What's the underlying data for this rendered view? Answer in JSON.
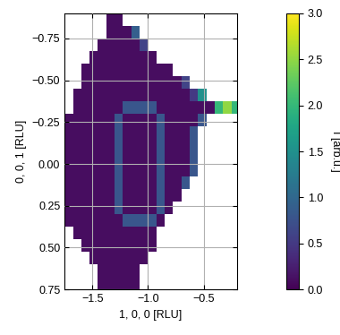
{
  "chart_data": {
    "type": "heatmap",
    "x_label": "1, 0, 0 [RLU]",
    "y_label": "0, 0, 1 [RLU]",
    "xlim": [
      -1.75,
      -0.2
    ],
    "ylim": [
      0.75,
      -0.9
    ],
    "xticks": [
      {
        "value": -1.5,
        "label": "−1.5"
      },
      {
        "value": -1.0,
        "label": "−1.0"
      },
      {
        "value": -0.5,
        "label": "−0.5"
      }
    ],
    "yticks": [
      {
        "value": -0.75,
        "label": "−0.75"
      },
      {
        "value": -0.5,
        "label": "−0.50"
      },
      {
        "value": -0.25,
        "label": "−0.25"
      },
      {
        "value": 0.0,
        "label": "0.00"
      },
      {
        "value": 0.25,
        "label": "0.25"
      },
      {
        "value": 0.5,
        "label": "0.50"
      },
      {
        "value": 0.75,
        "label": "0.75"
      }
    ],
    "grid": true,
    "x_edges": [
      -1.75,
      -1.675,
      -1.6,
      -1.525,
      -1.45,
      -1.375,
      -1.3,
      -1.225,
      -1.15,
      -1.075,
      -1.0,
      -0.925,
      -0.85,
      -0.775,
      -0.7,
      -0.625,
      -0.55,
      -0.475,
      -0.4,
      -0.325,
      -0.25,
      -0.175
    ],
    "y_edges": [
      -0.9,
      -0.825,
      -0.75,
      -0.675,
      -0.6,
      -0.525,
      -0.45,
      -0.375,
      -0.3,
      -0.225,
      -0.15,
      -0.075,
      0,
      0.075,
      0.15,
      0.225,
      0.3,
      0.375,
      0.45,
      0.525,
      0.6,
      0.675,
      0.75
    ],
    "cells": [
      [
        null,
        null,
        null,
        null,
        null,
        0.1,
        0.1,
        null,
        null,
        null,
        null,
        null,
        null,
        null,
        null,
        null,
        null,
        null,
        null,
        null,
        null
      ],
      [
        null,
        null,
        null,
        null,
        null,
        0.1,
        0.1,
        0.1,
        0.9,
        null,
        null,
        null,
        null,
        null,
        null,
        null,
        null,
        null,
        null,
        null,
        null
      ],
      [
        null,
        null,
        null,
        null,
        0.1,
        0.1,
        0.1,
        0.1,
        0.1,
        0.6,
        null,
        null,
        null,
        null,
        null,
        null,
        null,
        null,
        null,
        null,
        null
      ],
      [
        null,
        null,
        null,
        0.1,
        0.1,
        0.1,
        0.1,
        0.1,
        0.1,
        0.1,
        0.1,
        null,
        null,
        null,
        null,
        null,
        null,
        null,
        null,
        null,
        null
      ],
      [
        null,
        null,
        0.1,
        0.1,
        0.1,
        0.1,
        0.1,
        0.1,
        0.1,
        0.1,
        0.1,
        0.1,
        0.1,
        null,
        null,
        null,
        null,
        null,
        null,
        null,
        null
      ],
      [
        null,
        null,
        0.1,
        0.1,
        0.1,
        0.1,
        0.1,
        0.1,
        0.1,
        0.1,
        0.1,
        0.1,
        0.1,
        0.1,
        0.6,
        null,
        null,
        null,
        null,
        null,
        null
      ],
      [
        null,
        0.1,
        0.1,
        0.1,
        0.1,
        0.1,
        0.1,
        0.1,
        0.1,
        0.1,
        0.1,
        0.1,
        0.1,
        0.1,
        0.1,
        0.5,
        1.5,
        null,
        null,
        null,
        null
      ],
      [
        null,
        0.1,
        0.1,
        0.1,
        0.1,
        0.1,
        0.1,
        0.8,
        0.8,
        0.8,
        0.8,
        0.1,
        0.1,
        0.1,
        0.1,
        0.1,
        0.1,
        0.1,
        2.0,
        2.5,
        2.0
      ],
      [
        0.1,
        0.1,
        0.1,
        0.1,
        0.1,
        0.1,
        0.8,
        0.1,
        0.1,
        0.1,
        0.1,
        0.8,
        0.1,
        0.1,
        0.1,
        0.1,
        0.8,
        null,
        null,
        null,
        null
      ],
      [
        0.1,
        0.1,
        0.1,
        0.1,
        0.1,
        0.1,
        0.8,
        0.1,
        0.1,
        0.1,
        0.1,
        0.8,
        0.1,
        0.1,
        0.1,
        0.8,
        null,
        null,
        null,
        null,
        null
      ],
      [
        0.1,
        0.1,
        0.1,
        0.1,
        0.1,
        0.1,
        0.8,
        0.1,
        0.1,
        0.1,
        0.1,
        0.8,
        0.1,
        0.1,
        0.1,
        0.8,
        null,
        null,
        null,
        null,
        null
      ],
      [
        0.1,
        0.1,
        0.1,
        0.1,
        0.1,
        0.1,
        0.8,
        0.1,
        0.1,
        0.1,
        0.1,
        0.8,
        0.1,
        0.1,
        0.1,
        0.8,
        null,
        null,
        null,
        null,
        null
      ],
      [
        0.1,
        0.1,
        0.1,
        0.1,
        0.1,
        0.1,
        0.8,
        0.1,
        0.1,
        0.1,
        0.1,
        0.8,
        0.1,
        0.1,
        0.1,
        0.8,
        null,
        null,
        null,
        null,
        null
      ],
      [
        0.1,
        0.1,
        0.1,
        0.1,
        0.1,
        0.1,
        0.8,
        0.1,
        0.1,
        0.1,
        0.1,
        0.8,
        0.1,
        0.1,
        0.8,
        null,
        null,
        null,
        null,
        null,
        null
      ],
      [
        0.1,
        0.1,
        0.1,
        0.1,
        0.1,
        0.1,
        0.8,
        0.1,
        0.1,
        0.1,
        0.1,
        0.8,
        0.1,
        0.1,
        null,
        null,
        null,
        null,
        null,
        null,
        null
      ],
      [
        0.1,
        0.1,
        0.1,
        0.1,
        0.1,
        0.1,
        0.8,
        0.1,
        0.1,
        0.1,
        0.1,
        0.8,
        0.1,
        null,
        null,
        null,
        null,
        null,
        null,
        null,
        null
      ],
      [
        0.1,
        0.1,
        0.1,
        0.1,
        0.1,
        0.1,
        0.1,
        0.8,
        0.8,
        0.8,
        0.8,
        0.1,
        null,
        null,
        null,
        null,
        null,
        null,
        null,
        null,
        null
      ],
      [
        null,
        0.1,
        0.1,
        0.1,
        0.1,
        0.1,
        0.1,
        0.1,
        0.1,
        0.1,
        0.1,
        null,
        null,
        null,
        null,
        null,
        null,
        null,
        null,
        null,
        null
      ],
      [
        null,
        null,
        0.1,
        0.1,
        0.1,
        0.1,
        0.1,
        0.1,
        0.1,
        0.1,
        0.1,
        null,
        null,
        null,
        null,
        null,
        null,
        null,
        null,
        null,
        null
      ],
      [
        null,
        null,
        null,
        0.1,
        0.1,
        0.1,
        0.1,
        0.1,
        0.1,
        0.1,
        null,
        null,
        null,
        null,
        null,
        null,
        null,
        null,
        null,
        null,
        null
      ],
      [
        null,
        null,
        null,
        null,
        0.1,
        0.1,
        0.1,
        0.1,
        0.1,
        null,
        null,
        null,
        null,
        null,
        null,
        null,
        null,
        null,
        null,
        null,
        null
      ],
      [
        null,
        null,
        null,
        null,
        0.1,
        0.1,
        0.1,
        0.1,
        0.1,
        null,
        null,
        null,
        null,
        null,
        null,
        null,
        null,
        null,
        null,
        null,
        null
      ]
    ],
    "colorbar": {
      "range": [
        0.0,
        3.0
      ],
      "ticks": [
        {
          "value": 0.0,
          "label": "0.0"
        },
        {
          "value": 0.5,
          "label": "0.5"
        },
        {
          "value": 1.0,
          "label": "1.0"
        },
        {
          "value": 1.5,
          "label": "1.5"
        },
        {
          "value": 2.0,
          "label": "2.0"
        },
        {
          "value": 2.5,
          "label": "2.5"
        },
        {
          "value": 3.0,
          "label": "3.0"
        }
      ],
      "label": "I [arb.u.]"
    }
  }
}
